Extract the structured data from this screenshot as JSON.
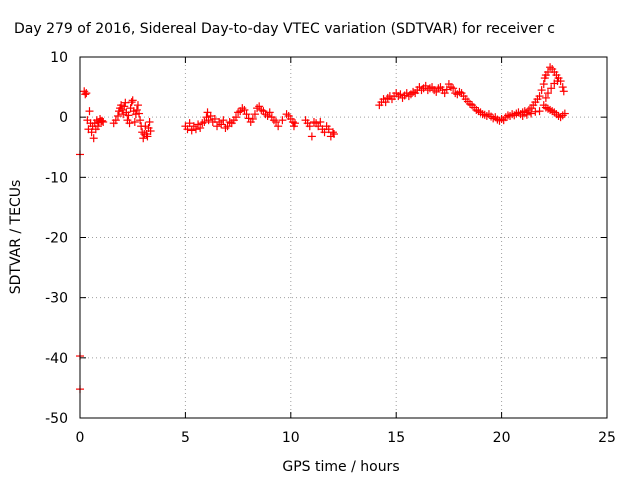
{
  "chart_data": {
    "type": "scatter",
    "title": "Day 279 of 2016, Sidereal Day-to-day VTEC variation (SDTVAR) for receiver c",
    "xlabel": "GPS time / hours",
    "ylabel": "SDTVAR / TECUs",
    "xlim": [
      0,
      25
    ],
    "ylim": [
      -50,
      10
    ],
    "xticks": [
      0,
      5,
      10,
      15,
      20,
      25
    ],
    "yticks": [
      -50,
      -40,
      -30,
      -20,
      -10,
      0,
      10
    ],
    "grid": true,
    "marker": "+",
    "color": "#ff0000",
    "segments": [
      {
        "points": [
          [
            0.0,
            -6.2
          ],
          [
            0.0,
            -39.7
          ],
          [
            0.0,
            -45.2
          ]
        ]
      },
      {
        "points": [
          [
            0.2,
            4.3
          ],
          [
            0.25,
            3.8
          ],
          [
            0.3,
            4.0
          ],
          [
            0.35,
            -0.5
          ],
          [
            0.4,
            -2.0
          ],
          [
            0.45,
            1.0
          ],
          [
            0.5,
            -1.0
          ],
          [
            0.55,
            -2.5
          ],
          [
            0.6,
            -1.5
          ],
          [
            0.65,
            -3.5
          ],
          [
            0.7,
            -1.0
          ],
          [
            0.75,
            -2.0
          ],
          [
            0.8,
            -0.5
          ],
          [
            0.85,
            -1.5
          ],
          [
            0.9,
            -0.8
          ],
          [
            0.95,
            -0.3
          ],
          [
            1.0,
            -0.7
          ],
          [
            1.05,
            -0.6
          ],
          [
            1.1,
            -0.8
          ]
        ]
      },
      {
        "points": [
          [
            1.6,
            -1.0
          ],
          [
            1.7,
            -0.5
          ],
          [
            1.8,
            0.2
          ],
          [
            1.85,
            1.0
          ],
          [
            1.9,
            1.5
          ],
          [
            1.95,
            2.0
          ],
          [
            2.0,
            1.2
          ],
          [
            2.05,
            0.5
          ],
          [
            2.1,
            1.8
          ],
          [
            2.15,
            2.4
          ],
          [
            2.2,
            0.8
          ],
          [
            2.25,
            -0.5
          ],
          [
            2.3,
            0.3
          ],
          [
            2.35,
            -1.0
          ],
          [
            2.4,
            1.5
          ],
          [
            2.45,
            2.5
          ],
          [
            2.5,
            2.8
          ],
          [
            2.55,
            1.0
          ],
          [
            2.6,
            -0.8
          ],
          [
            2.65,
            0.5
          ],
          [
            2.7,
            1.2
          ],
          [
            2.75,
            2.0
          ],
          [
            2.8,
            0.6
          ],
          [
            2.85,
            -0.5
          ],
          [
            2.9,
            -1.5
          ],
          [
            2.95,
            -2.5
          ],
          [
            3.0,
            -3.5
          ],
          [
            3.05,
            -2.8
          ],
          [
            3.1,
            -1.5
          ],
          [
            3.15,
            -2.8
          ],
          [
            3.2,
            -3.2
          ],
          [
            3.25,
            -1.8
          ],
          [
            3.3,
            -0.8
          ],
          [
            3.35,
            -2.3
          ]
        ]
      },
      {
        "points": [
          [
            5.0,
            -1.5
          ],
          [
            5.1,
            -2.0
          ],
          [
            5.2,
            -1.0
          ],
          [
            5.3,
            -2.2
          ],
          [
            5.4,
            -1.5
          ],
          [
            5.5,
            -2.0
          ],
          [
            5.6,
            -1.2
          ],
          [
            5.7,
            -1.8
          ],
          [
            5.8,
            -1.0
          ],
          [
            5.9,
            -0.8
          ],
          [
            6.0,
            0.0
          ],
          [
            6.05,
            0.8
          ],
          [
            6.1,
            -0.5
          ],
          [
            6.2,
            0.2
          ],
          [
            6.3,
            -0.8
          ],
          [
            6.4,
            -0.3
          ],
          [
            6.5,
            -1.5
          ],
          [
            6.6,
            -0.8
          ],
          [
            6.7,
            -1.2
          ],
          [
            6.8,
            -0.5
          ],
          [
            6.9,
            -1.8
          ],
          [
            7.0,
            -1.5
          ],
          [
            7.1,
            -0.8
          ],
          [
            7.2,
            -1.0
          ],
          [
            7.3,
            -0.5
          ],
          [
            7.4,
            0.0
          ],
          [
            7.5,
            0.8
          ],
          [
            7.6,
            1.0
          ],
          [
            7.7,
            1.5
          ],
          [
            7.8,
            1.2
          ],
          [
            7.9,
            0.5
          ],
          [
            8.0,
            -0.2
          ],
          [
            8.1,
            -0.8
          ],
          [
            8.2,
            -0.3
          ],
          [
            8.3,
            0.5
          ],
          [
            8.4,
            1.5
          ],
          [
            8.5,
            1.8
          ],
          [
            8.6,
            1.2
          ],
          [
            8.7,
            1.0
          ],
          [
            8.8,
            0.5
          ],
          [
            8.9,
            0.2
          ],
          [
            9.0,
            0.8
          ],
          [
            9.1,
            0.0
          ],
          [
            9.2,
            -0.5
          ],
          [
            9.3,
            -0.8
          ],
          [
            9.4,
            -1.5
          ],
          [
            9.6,
            -0.5
          ],
          [
            9.8,
            0.5
          ],
          [
            9.9,
            0.2
          ],
          [
            10.0,
            -0.3
          ],
          [
            10.1,
            -0.8
          ],
          [
            10.15,
            -1.5
          ],
          [
            10.2,
            -1.0
          ]
        ]
      },
      {
        "points": [
          [
            10.7,
            -0.5
          ],
          [
            10.8,
            -1.0
          ],
          [
            10.9,
            -1.5
          ],
          [
            11.0,
            -3.2
          ],
          [
            11.1,
            -0.8
          ],
          [
            11.2,
            -1.0
          ],
          [
            11.3,
            -1.5
          ],
          [
            11.4,
            -0.8
          ],
          [
            11.5,
            -2.0
          ],
          [
            11.6,
            -2.5
          ],
          [
            11.7,
            -1.5
          ],
          [
            11.8,
            -2.0
          ],
          [
            11.9,
            -3.2
          ],
          [
            12.0,
            -2.5
          ],
          [
            12.05,
            -2.8
          ]
        ]
      },
      {
        "points": [
          [
            14.2,
            2.0
          ],
          [
            14.3,
            2.5
          ],
          [
            14.4,
            3.0
          ],
          [
            14.5,
            2.5
          ],
          [
            14.6,
            3.2
          ],
          [
            14.7,
            3.5
          ],
          [
            14.8,
            3.0
          ],
          [
            14.9,
            3.5
          ],
          [
            15.0,
            4.0
          ],
          [
            15.1,
            3.5
          ],
          [
            15.2,
            3.8
          ],
          [
            15.3,
            3.2
          ],
          [
            15.4,
            3.6
          ],
          [
            15.5,
            4.0
          ],
          [
            15.6,
            3.5
          ],
          [
            15.7,
            3.8
          ],
          [
            15.8,
            4.2
          ],
          [
            15.9,
            4.0
          ],
          [
            16.0,
            4.5
          ],
          [
            16.1,
            5.0
          ],
          [
            16.2,
            4.5
          ],
          [
            16.3,
            4.8
          ],
          [
            16.4,
            5.2
          ],
          [
            16.5,
            4.5
          ],
          [
            16.6,
            4.8
          ],
          [
            16.7,
            5.0
          ],
          [
            16.8,
            4.5
          ],
          [
            16.9,
            4.2
          ],
          [
            17.0,
            4.8
          ],
          [
            17.1,
            5.0
          ],
          [
            17.2,
            4.5
          ],
          [
            17.3,
            4.0
          ],
          [
            17.4,
            4.6
          ],
          [
            17.5,
            5.5
          ],
          [
            17.6,
            5.0
          ],
          [
            17.7,
            4.8
          ],
          [
            17.8,
            4.0
          ],
          [
            17.9,
            3.8
          ],
          [
            18.0,
            4.2
          ],
          [
            18.1,
            4.0
          ],
          [
            18.2,
            3.5
          ],
          [
            18.3,
            3.0
          ],
          [
            18.4,
            2.6
          ],
          [
            18.5,
            2.2
          ],
          [
            18.6,
            2.0
          ],
          [
            18.7,
            1.6
          ],
          [
            18.8,
            1.2
          ],
          [
            18.9,
            1.0
          ],
          [
            19.0,
            0.8
          ],
          [
            19.1,
            0.5
          ],
          [
            19.2,
            0.4
          ],
          [
            19.3,
            0.2
          ],
          [
            19.4,
            0.5
          ],
          [
            19.5,
            0.1
          ],
          [
            19.6,
            -0.2
          ],
          [
            19.7,
            0.0
          ],
          [
            19.8,
            -0.4
          ],
          [
            19.9,
            -0.6
          ],
          [
            20.0,
            -0.3
          ],
          [
            20.1,
            -0.5
          ],
          [
            20.2,
            0.0
          ],
          [
            20.3,
            0.3
          ],
          [
            20.4,
            0.2
          ],
          [
            20.5,
            0.5
          ],
          [
            20.6,
            0.3
          ],
          [
            20.7,
            0.6
          ],
          [
            20.8,
            0.8
          ],
          [
            20.9,
            0.5
          ],
          [
            21.0,
            0.8
          ],
          [
            21.1,
            1.0
          ],
          [
            21.2,
            0.8
          ],
          [
            21.3,
            1.2
          ],
          [
            21.4,
            1.5
          ],
          [
            21.5,
            2.0
          ],
          [
            21.6,
            2.5
          ],
          [
            21.7,
            3.0
          ],
          [
            21.8,
            3.5
          ],
          [
            21.9,
            4.5
          ],
          [
            22.0,
            5.5
          ],
          [
            22.05,
            6.5
          ],
          [
            22.1,
            7.0
          ],
          [
            22.2,
            7.5
          ],
          [
            22.3,
            8.3
          ],
          [
            22.4,
            8.0
          ],
          [
            22.5,
            7.5
          ],
          [
            22.6,
            7.0
          ],
          [
            22.7,
            6.5
          ],
          [
            22.8,
            6.0
          ],
          [
            22.9,
            5.0
          ],
          [
            22.95,
            4.3
          ],
          [
            22.0,
            2.0
          ],
          [
            22.1,
            1.6
          ],
          [
            22.2,
            1.4
          ],
          [
            22.3,
            1.2
          ],
          [
            22.4,
            1.0
          ],
          [
            22.5,
            0.8
          ],
          [
            22.6,
            0.5
          ],
          [
            22.7,
            0.2
          ],
          [
            22.8,
            0.0
          ],
          [
            22.9,
            0.3
          ],
          [
            23.0,
            0.6
          ],
          [
            22.1,
            3.2
          ],
          [
            22.2,
            4.0
          ],
          [
            22.35,
            4.8
          ],
          [
            22.5,
            5.6
          ],
          [
            22.65,
            6.0
          ],
          [
            21.0,
            0.2
          ],
          [
            21.2,
            0.4
          ],
          [
            21.4,
            0.6
          ],
          [
            21.6,
            0.9
          ],
          [
            21.8,
            1.0
          ]
        ]
      }
    ]
  }
}
